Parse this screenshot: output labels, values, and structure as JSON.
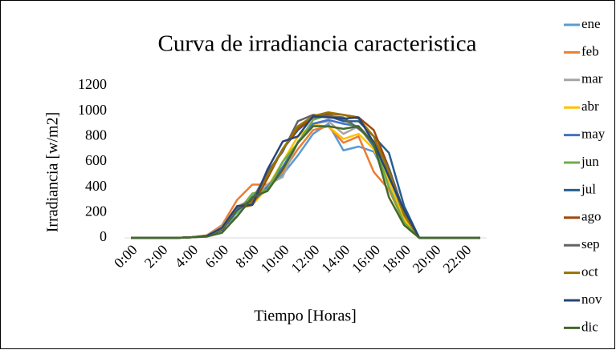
{
  "chart_data": {
    "type": "line",
    "title": "Curva de irradiancia caracteristica",
    "xlabel": "Tiempo [Horas]",
    "ylabel": "Irradiancia [w/m2]",
    "categories": [
      "0:00",
      null,
      "2:00",
      null,
      "4:00",
      null,
      "6:00",
      null,
      "8:00",
      null,
      "10:00",
      null,
      "12:00",
      null,
      "14:00",
      null,
      "16:00",
      null,
      "18:00",
      null,
      "20:00",
      null,
      "22:00",
      null
    ],
    "ylim": [
      0,
      1200
    ],
    "yticks": [
      0,
      200,
      400,
      600,
      800,
      1000,
      1200
    ],
    "grid": false,
    "legend": "right",
    "series": [
      {
        "name": "ene",
        "color": "#5b9bd5",
        "values": [
          0,
          0,
          0,
          0,
          5,
          15,
          80,
          170,
          330,
          400,
          500,
          650,
          820,
          900,
          690,
          720,
          680,
          450,
          150,
          0,
          0,
          0,
          0,
          0
        ]
      },
      {
        "name": "feb",
        "color": "#ed7d31",
        "values": [
          0,
          0,
          0,
          0,
          5,
          20,
          100,
          300,
          420,
          420,
          520,
          700,
          850,
          880,
          750,
          800,
          520,
          380,
          120,
          0,
          0,
          0,
          0,
          0
        ]
      },
      {
        "name": "mar",
        "color": "#a5a5a5",
        "values": [
          0,
          0,
          0,
          0,
          5,
          15,
          90,
          250,
          300,
          420,
          480,
          760,
          900,
          920,
          820,
          880,
          760,
          500,
          130,
          0,
          0,
          0,
          0,
          0
        ]
      },
      {
        "name": "abr",
        "color": "#ffc000",
        "values": [
          0,
          0,
          0,
          0,
          5,
          15,
          80,
          220,
          260,
          400,
          600,
          800,
          890,
          880,
          780,
          820,
          700,
          450,
          150,
          0,
          0,
          0,
          0,
          0
        ]
      },
      {
        "name": "may",
        "color": "#4472c4",
        "values": [
          0,
          0,
          0,
          0,
          5,
          15,
          60,
          220,
          280,
          400,
          560,
          750,
          900,
          930,
          900,
          880,
          720,
          500,
          180,
          0,
          0,
          0,
          0,
          0
        ]
      },
      {
        "name": "jun",
        "color": "#70ad47",
        "values": [
          0,
          0,
          0,
          0,
          5,
          10,
          70,
          200,
          350,
          380,
          600,
          750,
          930,
          970,
          930,
          870,
          750,
          400,
          120,
          0,
          0,
          0,
          0,
          0
        ]
      },
      {
        "name": "jul",
        "color": "#255e91",
        "values": [
          0,
          0,
          0,
          0,
          5,
          15,
          60,
          220,
          300,
          500,
          700,
          850,
          950,
          960,
          920,
          920,
          800,
          670,
          250,
          0,
          0,
          0,
          0,
          0
        ]
      },
      {
        "name": "ago",
        "color": "#9e480e",
        "values": [
          0,
          0,
          0,
          0,
          5,
          15,
          70,
          240,
          260,
          470,
          700,
          860,
          950,
          980,
          970,
          950,
          850,
          550,
          200,
          0,
          0,
          0,
          0,
          0
        ]
      },
      {
        "name": "sep",
        "color": "#636363",
        "values": [
          0,
          0,
          0,
          0,
          5,
          15,
          70,
          240,
          300,
          520,
          680,
          920,
          970,
          960,
          950,
          860,
          760,
          550,
          200,
          0,
          0,
          0,
          0,
          0
        ]
      },
      {
        "name": "oct",
        "color": "#997300",
        "values": [
          0,
          0,
          0,
          0,
          5,
          15,
          70,
          240,
          280,
          490,
          700,
          880,
          960,
          990,
          970,
          940,
          800,
          520,
          180,
          0,
          0,
          0,
          0,
          0
        ]
      },
      {
        "name": "nov",
        "color": "#264478",
        "values": [
          0,
          0,
          0,
          0,
          5,
          15,
          80,
          250,
          260,
          540,
          760,
          800,
          960,
          950,
          940,
          950,
          750,
          480,
          220,
          0,
          0,
          0,
          0,
          0
        ]
      },
      {
        "name": "dic",
        "color": "#43682b",
        "values": [
          0,
          0,
          0,
          0,
          5,
          10,
          40,
          170,
          320,
          370,
          540,
          750,
          880,
          880,
          860,
          880,
          740,
          320,
          100,
          0,
          0,
          0,
          0,
          0
        ]
      }
    ]
  }
}
